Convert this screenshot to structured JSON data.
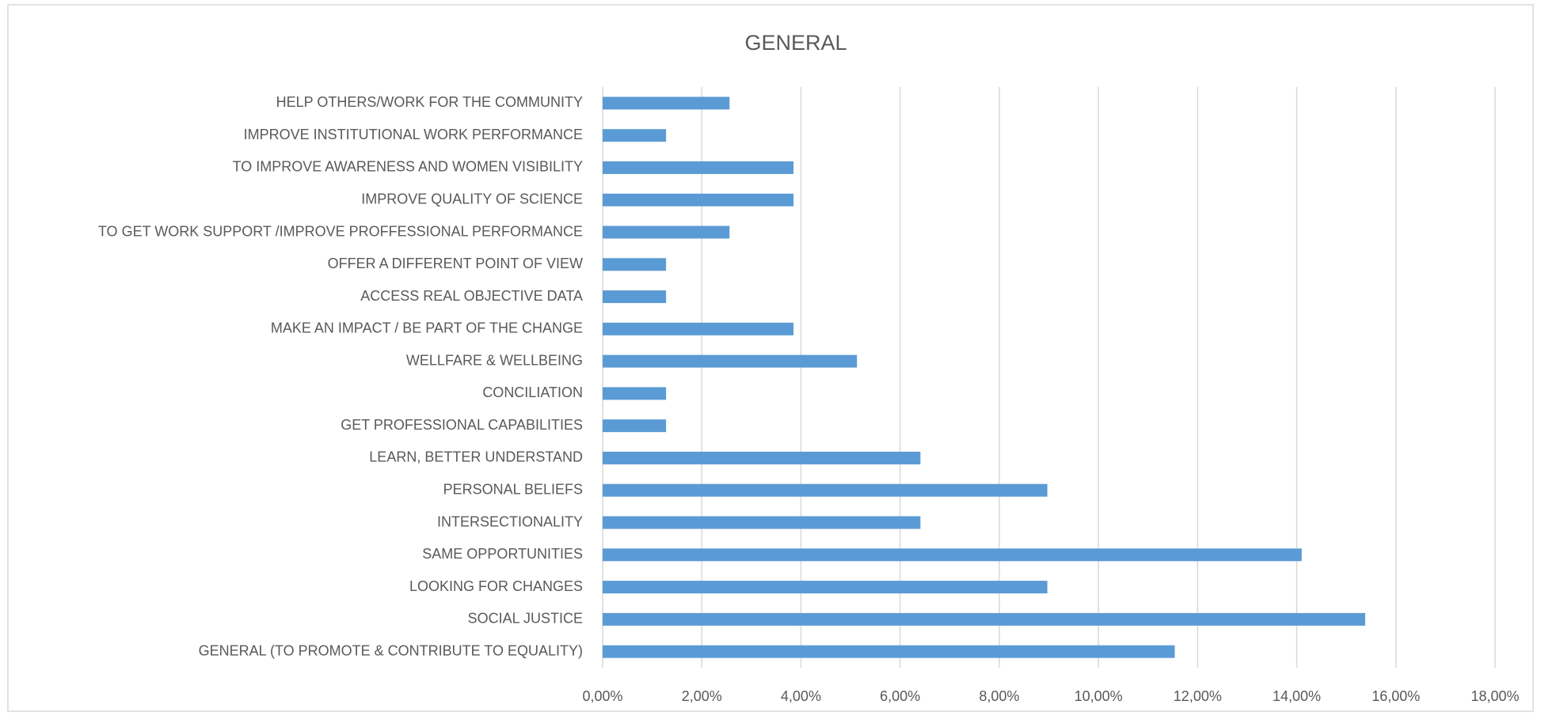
{
  "chart_data": {
    "type": "bar",
    "orientation": "horizontal",
    "title": "GENERAL",
    "categories": [
      "HELP OTHERS/WORK FOR THE COMMUNITY",
      "IMPROVE INSTITUTIONAL WORK PERFORMANCE",
      "TO IMPROVE AWARENESS AND WOMEN VISIBILITY",
      "IMPROVE QUALITY OF SCIENCE",
      "TO GET WORK SUPPORT /IMPROVE PROFFESSIONAL PERFORMANCE",
      "OFFER A DIFFERENT POINT OF VIEW",
      "ACCESS REAL OBJECTIVE DATA",
      "MAKE AN IMPACT / BE PART OF THE CHANGE",
      "WELLFARE & WELLBEING",
      "CONCILIATION",
      "GET PROFESSIONAL CAPABILITIES",
      "LEARN, BETTER UNDERSTAND",
      "PERSONAL BELIEFS",
      "INTERSECTIONALITY",
      "SAME OPPORTUNITIES",
      "LOOKING FOR CHANGES",
      "SOCIAL JUSTICE",
      "GENERAL (TO PROMOTE & CONTRIBUTE TO EQUALITY)"
    ],
    "values": [
      2.56,
      1.28,
      3.85,
      3.85,
      2.56,
      1.28,
      1.28,
      3.85,
      5.13,
      1.28,
      1.28,
      6.41,
      8.97,
      6.41,
      14.1,
      8.97,
      15.38,
      11.54
    ],
    "color": "#5b9bd5",
    "xlim": [
      0,
      18
    ],
    "xticks": [
      {
        "value": 0,
        "label": "0,00%"
      },
      {
        "value": 2,
        "label": "2,00%"
      },
      {
        "value": 4,
        "label": "4,00%"
      },
      {
        "value": 6,
        "label": "6,00%"
      },
      {
        "value": 8,
        "label": "8,00%"
      },
      {
        "value": 10,
        "label": "10,00%"
      },
      {
        "value": 12,
        "label": "12,00%"
      },
      {
        "value": 14,
        "label": "14,00%"
      },
      {
        "value": 16,
        "label": "16,00%"
      },
      {
        "value": 18,
        "label": "18,00%"
      }
    ],
    "grid": true
  }
}
